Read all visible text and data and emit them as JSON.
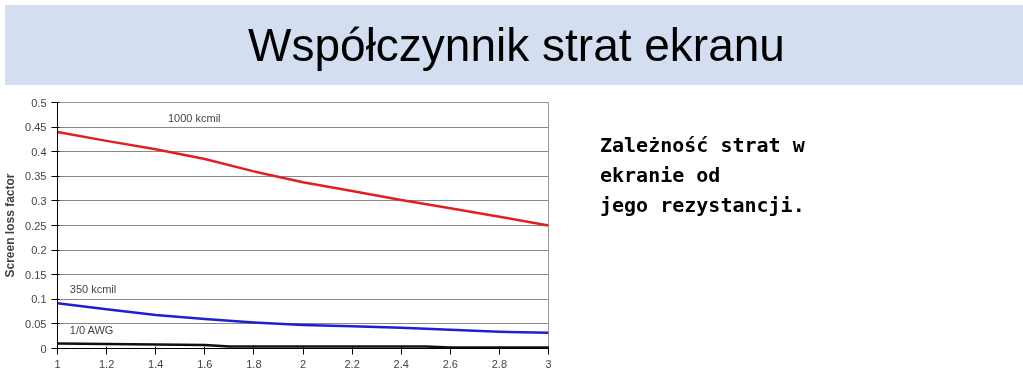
{
  "chart_data": {
    "type": "line",
    "title": "Współczynnik strat ekranu",
    "ylabel": "Screen loss factor",
    "annotations": [
      "Zależność strat w ekranie od jego rezystancji."
    ],
    "xlim": [
      1,
      3
    ],
    "xticks": [
      1,
      1.2,
      1.4,
      1.6,
      1.8,
      2,
      2.2,
      2.4,
      2.6,
      2.8,
      3
    ],
    "ylim": [
      0,
      0.5
    ],
    "yticks": [
      0,
      0.05,
      0.1,
      0.15,
      0.2,
      0.25,
      0.3,
      0.35,
      0.4,
      0.45,
      0.5
    ],
    "grid": "y",
    "legend": false,
    "marker": "none",
    "line_style": "solid",
    "series": [
      {
        "name": "1000 kcmil",
        "color": "#e02020",
        "x": [
          1,
          1.2,
          1.4,
          1.6,
          1.8,
          2,
          2.2,
          2.4,
          2.6,
          2.8,
          3
        ],
        "values": [
          0.44,
          0.422,
          0.405,
          0.385,
          0.36,
          0.338,
          0.32,
          0.302,
          0.285,
          0.268,
          0.25
        ]
      },
      {
        "name": "350 kcmil",
        "color": "#1f1fd0",
        "x": [
          1,
          1.2,
          1.4,
          1.6,
          1.8,
          2,
          2.2,
          2.4,
          2.6,
          2.8,
          3
        ],
        "values": [
          0.092,
          0.08,
          0.068,
          0.06,
          0.053,
          0.048,
          0.045,
          0.042,
          0.038,
          0.034,
          0.032
        ]
      },
      {
        "name": "1/0 AWG",
        "color": "#101010",
        "x": [
          1,
          1.4,
          1.6,
          1.7,
          2,
          2.5,
          2.6,
          3
        ],
        "values": [
          0.01,
          0.008,
          0.007,
          0.004,
          0.004,
          0.004,
          0.002,
          0.002
        ]
      }
    ]
  }
}
